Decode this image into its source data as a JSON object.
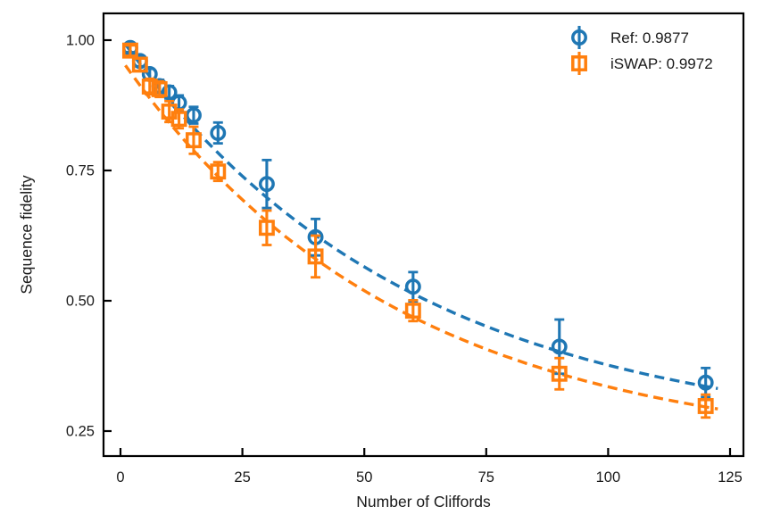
{
  "chart_data": {
    "type": "scatter",
    "title": "",
    "xlabel": "Number of Cliffords",
    "ylabel": "Sequence fidelity",
    "xlim": [
      -3.5,
      127.7
    ],
    "ylim": [
      0.202,
      1.051
    ],
    "grid": false,
    "legend_position": "upper right",
    "axis_color": "#000000",
    "text_color": "#1a1a1a",
    "xticks": {
      "values": [
        0,
        25,
        50,
        75,
        100,
        125
      ],
      "labels": [
        "0",
        "25",
        "50",
        "75",
        "100",
        "125"
      ]
    },
    "yticks": {
      "values": [
        1.0,
        0.75,
        0.5,
        0.25
      ],
      "labels": [
        "1.00",
        "0.75",
        "0.50",
        "0.25"
      ]
    },
    "x": [
      2,
      4,
      6,
      8,
      10,
      12,
      15,
      20,
      30,
      40,
      60,
      90,
      120
    ],
    "series": [
      {
        "name": "Ref",
        "label": "Ref: 0.9877",
        "color": "#1f77b4",
        "marker": "circle",
        "linestyle": "dashed",
        "y": [
          0.985,
          0.96,
          0.935,
          0.912,
          0.9,
          0.88,
          0.856,
          0.822,
          0.724,
          0.622,
          0.527,
          0.412,
          0.343
        ],
        "yerr": [
          0.008,
          0.01,
          0.01,
          0.012,
          0.012,
          0.014,
          0.016,
          0.02,
          0.046,
          0.035,
          0.028,
          0.052,
          0.028
        ],
        "fit": {
          "A": 0.77,
          "p": 0.9832,
          "B": 0.235
        }
      },
      {
        "name": "iSWAP",
        "label": "iSWAP: 0.9972",
        "color": "#ff7f0e",
        "marker": "square",
        "linestyle": "dashed",
        "y": [
          0.98,
          0.953,
          0.911,
          0.906,
          0.863,
          0.849,
          0.808,
          0.748,
          0.64,
          0.585,
          0.481,
          0.36,
          0.298
        ],
        "yerr": [
          0.01,
          0.012,
          0.015,
          0.015,
          0.02,
          0.018,
          0.026,
          0.018,
          0.033,
          0.04,
          0.02,
          0.03,
          0.022
        ]
      }
    ]
  }
}
